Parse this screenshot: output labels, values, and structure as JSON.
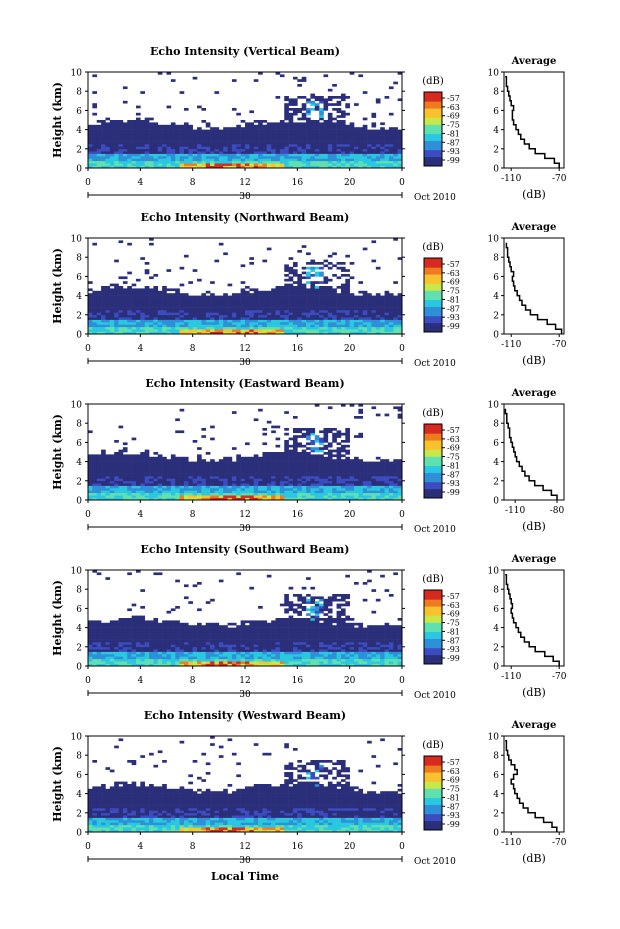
{
  "chart_data": [
    {
      "type": "heatmap",
      "title": "Echo Intensity (Vertical Beam)",
      "ylabel": "Height (km)",
      "xticks": [
        "0",
        "4",
        "8",
        "12",
        "16",
        "20",
        "0"
      ],
      "yticks": [
        "0",
        "2",
        "4",
        "6",
        "8",
        "10"
      ],
      "ylim": [
        0,
        10
      ],
      "date_mark": "30",
      "date_label": "Oct 2010",
      "colorbar_unit": "(dB)",
      "colorbar_ticks": [
        "-57",
        "-63",
        "-69",
        "-75",
        "-81",
        "-87",
        "-93",
        "-99"
      ],
      "average": {
        "title": "Average",
        "xticks": [
          "-110",
          "-70"
        ],
        "xlabel": "(dB)",
        "xlim": [
          -116,
          -66
        ],
        "profile": [
          [
            -70,
            0.0
          ],
          [
            -74,
            0.5
          ],
          [
            -82,
            1.0
          ],
          [
            -90,
            1.5
          ],
          [
            -95,
            2.0
          ],
          [
            -99,
            2.5
          ],
          [
            -102,
            3.0
          ],
          [
            -104,
            3.5
          ],
          [
            -106,
            4.0
          ],
          [
            -108,
            4.5
          ],
          [
            -109,
            5.0
          ],
          [
            -109,
            5.5
          ],
          [
            -108,
            6.0
          ],
          [
            -110,
            6.5
          ],
          [
            -111,
            7.0
          ],
          [
            -112,
            7.5
          ],
          [
            -113,
            8.0
          ],
          [
            -114,
            8.5
          ],
          [
            -114,
            9.0
          ],
          [
            -115,
            9.5
          ]
        ]
      }
    },
    {
      "type": "heatmap",
      "title": "Echo Intensity (Northward Beam)",
      "ylabel": "Height (km)",
      "xticks": [
        "0",
        "4",
        "8",
        "12",
        "16",
        "20",
        "0"
      ],
      "yticks": [
        "0",
        "2",
        "4",
        "6",
        "8",
        "10"
      ],
      "ylim": [
        0,
        10
      ],
      "date_mark": "30",
      "date_label": "Oct 2010",
      "colorbar_unit": "(dB)",
      "colorbar_ticks": [
        "-57",
        "-63",
        "-69",
        "-75",
        "-81",
        "-87",
        "-93",
        "-99"
      ],
      "average": {
        "title": "Average",
        "xticks": [
          "-110",
          "-70"
        ],
        "xlabel": "(dB)",
        "xlim": [
          -116,
          -66
        ],
        "profile": [
          [
            -68,
            0.0
          ],
          [
            -73,
            0.5
          ],
          [
            -80,
            1.0
          ],
          [
            -88,
            1.5
          ],
          [
            -94,
            2.0
          ],
          [
            -98,
            2.5
          ],
          [
            -101,
            3.0
          ],
          [
            -103,
            3.5
          ],
          [
            -105,
            4.0
          ],
          [
            -107,
            4.5
          ],
          [
            -108,
            5.0
          ],
          [
            -109,
            5.5
          ],
          [
            -108,
            6.0
          ],
          [
            -110,
            6.5
          ],
          [
            -111,
            7.0
          ],
          [
            -112,
            7.5
          ],
          [
            -113,
            8.0
          ],
          [
            -113,
            8.5
          ],
          [
            -114,
            9.0
          ],
          [
            -114,
            9.5
          ]
        ]
      }
    },
    {
      "type": "heatmap",
      "title": "Echo Intensity (Eastward Beam)",
      "ylabel": "Height (km)",
      "xticks": [
        "0",
        "4",
        "8",
        "12",
        "16",
        "20",
        "0"
      ],
      "yticks": [
        "0",
        "2",
        "4",
        "6",
        "8",
        "10"
      ],
      "ylim": [
        0,
        10
      ],
      "date_mark": "30",
      "date_label": "Oct 2010",
      "colorbar_unit": "(dB)",
      "colorbar_ticks": [
        "-57",
        "-63",
        "-69",
        "-75",
        "-81",
        "-87",
        "-93",
        "-99"
      ],
      "average": {
        "title": "Average",
        "xticks": [
          "-110",
          "-80"
        ],
        "xlabel": "(dB)",
        "xlim": [
          -118,
          -75
        ],
        "profile": [
          [
            -80,
            0.0
          ],
          [
            -84,
            0.5
          ],
          [
            -90,
            1.0
          ],
          [
            -96,
            1.5
          ],
          [
            -100,
            2.0
          ],
          [
            -103,
            2.5
          ],
          [
            -105,
            3.0
          ],
          [
            -107,
            3.5
          ],
          [
            -109,
            4.0
          ],
          [
            -110,
            4.5
          ],
          [
            -111,
            5.0
          ],
          [
            -112,
            5.5
          ],
          [
            -113,
            6.0
          ],
          [
            -114,
            6.5
          ],
          [
            -114,
            7.0
          ],
          [
            -115,
            7.5
          ],
          [
            -116,
            8.0
          ],
          [
            -116,
            8.5
          ],
          [
            -117,
            9.0
          ],
          [
            -117,
            9.5
          ]
        ]
      }
    },
    {
      "type": "heatmap",
      "title": "Echo Intensity (Southward Beam)",
      "ylabel": "Height (km)",
      "xticks": [
        "0",
        "4",
        "8",
        "12",
        "16",
        "20",
        "0"
      ],
      "yticks": [
        "0",
        "2",
        "4",
        "6",
        "8",
        "10"
      ],
      "ylim": [
        0,
        10
      ],
      "date_mark": "30",
      "date_label": "Oct 2010",
      "colorbar_unit": "(dB)",
      "colorbar_ticks": [
        "-57",
        "-63",
        "-69",
        "-75",
        "-81",
        "-87",
        "-93",
        "-99"
      ],
      "average": {
        "title": "Average",
        "xticks": [
          "-110",
          "-70"
        ],
        "xlabel": "(dB)",
        "xlim": [
          -116,
          -66
        ],
        "profile": [
          [
            -70,
            0.0
          ],
          [
            -75,
            0.5
          ],
          [
            -82,
            1.0
          ],
          [
            -90,
            1.5
          ],
          [
            -95,
            2.0
          ],
          [
            -99,
            2.5
          ],
          [
            -102,
            3.0
          ],
          [
            -104,
            3.5
          ],
          [
            -106,
            4.0
          ],
          [
            -108,
            4.5
          ],
          [
            -109,
            5.0
          ],
          [
            -110,
            5.5
          ],
          [
            -109,
            6.0
          ],
          [
            -110,
            6.5
          ],
          [
            -111,
            7.0
          ],
          [
            -112,
            7.5
          ],
          [
            -113,
            8.0
          ],
          [
            -114,
            8.5
          ],
          [
            -114,
            9.0
          ],
          [
            -115,
            9.5
          ]
        ]
      }
    },
    {
      "type": "heatmap",
      "title": "Echo Intensity (Westward Beam)",
      "ylabel": "Height (km)",
      "xticks": [
        "0",
        "4",
        "8",
        "12",
        "16",
        "20",
        "0"
      ],
      "yticks": [
        "0",
        "2",
        "4",
        "6",
        "8",
        "10"
      ],
      "ylim": [
        0,
        10
      ],
      "date_mark": "30",
      "date_label": "Oct 2010",
      "colorbar_unit": "(dB)",
      "colorbar_ticks": [
        "-57",
        "-63",
        "-69",
        "-75",
        "-81",
        "-87",
        "-93",
        "-99"
      ],
      "average": {
        "title": "Average",
        "xticks": [
          "-110",
          "-70"
        ],
        "xlabel": "(dB)",
        "xlim": [
          -116,
          -66
        ],
        "profile": [
          [
            -72,
            0.0
          ],
          [
            -76,
            0.5
          ],
          [
            -83,
            1.0
          ],
          [
            -90,
            1.5
          ],
          [
            -96,
            2.0
          ],
          [
            -100,
            2.5
          ],
          [
            -103,
            3.0
          ],
          [
            -105,
            3.5
          ],
          [
            -107,
            4.0
          ],
          [
            -108,
            4.5
          ],
          [
            -110,
            5.0
          ],
          [
            -108,
            5.5
          ],
          [
            -105,
            6.0
          ],
          [
            -107,
            6.5
          ],
          [
            -110,
            7.0
          ],
          [
            -112,
            7.5
          ],
          [
            -113,
            8.0
          ],
          [
            -114,
            8.5
          ],
          [
            -114,
            9.0
          ],
          [
            -115,
            9.5
          ]
        ]
      }
    }
  ],
  "xlabel": "Local Time",
  "colors": {
    "background_echo": "#2b2f7a",
    "scale": [
      "#2b2f7a",
      "#3b4cc0",
      "#2f8fd8",
      "#2ac7e0",
      "#5fe0b0",
      "#c8e84a",
      "#f8c22e",
      "#f07a20",
      "#d62a20"
    ]
  }
}
